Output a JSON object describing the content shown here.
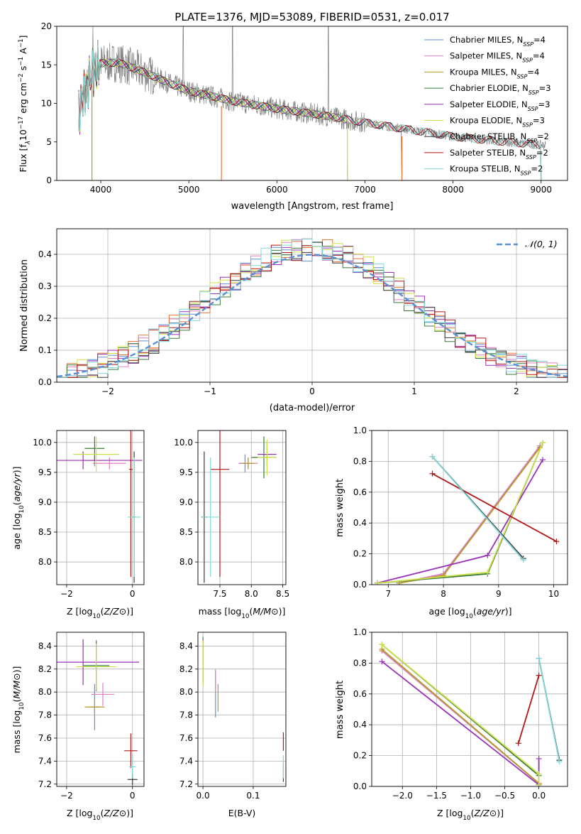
{
  "figure_title": "PLATE=1376, MJD=53089, FIBERID=0531, z=0.017",
  "series": [
    {
      "base": "Chabrier MILES, N",
      "sub": "SSP",
      "tail": "=4",
      "color": "#5b8fd6"
    },
    {
      "base": "Salpeter MILES, N",
      "sub": "SSP",
      "tail": "=4",
      "color": "#e07fc0"
    },
    {
      "base": "Kroupa MILES, N",
      "sub": "SSP",
      "tail": "=4",
      "color": "#b59a2a"
    },
    {
      "base": "Chabrier ELODIE, N",
      "sub": "SSP",
      "tail": "=3",
      "color": "#3a7a3a"
    },
    {
      "base": "Salpeter ELODIE, N",
      "sub": "SSP",
      "tail": "=3",
      "color": "#9932b8"
    },
    {
      "base": "Kroupa ELODIE, N",
      "sub": "SSP",
      "tail": "=3",
      "color": "#cde04a"
    },
    {
      "base": "Chabrier STELIB, N",
      "sub": "SSP",
      "tail": "=2",
      "color": "#3a3a3a"
    },
    {
      "base": "Salpeter STELIB, N",
      "sub": "SSP",
      "tail": "=2",
      "color": "#b01818"
    },
    {
      "base": "Kroupa STELIB, N",
      "sub": "SSP",
      "tail": "=2",
      "color": "#80d8d8"
    }
  ],
  "chart_data": [
    {
      "id": "spectrum",
      "type": "line",
      "xlabel": "wavelength [Angstrom, rest frame]",
      "ylabel_main": "Flux [f",
      "ylabel_sub": "λ",
      "ylabel_mid": "10",
      "ylabel_sup1": "−17",
      "ylabel_unit": " erg cm",
      "ylabel_sup2": "−2",
      "ylabel_s": " s",
      "ylabel_sup3": "−1",
      "ylabel_end": " A",
      "ylabel_sup4": "−1",
      "ylabel_close": "]",
      "xlim": [
        3500,
        9300
      ],
      "ylim": [
        0,
        20
      ],
      "xticks": [
        4000,
        5000,
        6000,
        7000,
        8000,
        9000
      ],
      "yticks": [
        0,
        5,
        10,
        15,
        20
      ],
      "data_color": "#808080",
      "continuum_x": [
        3750,
        3900,
        4000,
        4200,
        4500,
        4800,
        5000,
        5500,
        6000,
        6500,
        7000,
        7500,
        8000,
        8500,
        9000
      ],
      "continuum_y": [
        9,
        14,
        15.2,
        15.3,
        14,
        12.5,
        11.6,
        10.3,
        9.3,
        8.5,
        7.5,
        6.6,
        5.7,
        5.1,
        4.6
      ],
      "model_drops": [
        3900,
        5370,
        6800,
        7420
      ]
    },
    {
      "id": "residuals",
      "type": "step",
      "xlabel": "(data-model)/error",
      "ylabel": "Normed distribution",
      "xlim": [
        -2.5,
        2.5
      ],
      "ylim": [
        0,
        0.48
      ],
      "xticks": [
        -2,
        -1,
        0,
        1,
        2
      ],
      "yticks": [
        0.0,
        0.1,
        0.2,
        0.3,
        0.4
      ],
      "bin_width": 0.1,
      "gaussian_label": "𝒩(0, 1)",
      "gaussian_color": "#5b8fd6",
      "histogram_base": [
        0.03,
        0.04,
        0.05,
        0.06,
        0.07,
        0.09,
        0.1,
        0.12,
        0.13,
        0.15,
        0.16,
        0.18,
        0.2,
        0.22,
        0.21,
        0.23,
        0.24,
        0.26,
        0.28,
        0.3,
        0.31,
        0.33,
        0.35,
        0.36,
        0.38,
        0.39,
        0.4,
        0.41,
        0.4,
        0.42,
        0.41,
        0.4,
        0.41,
        0.39,
        0.4,
        0.38,
        0.37,
        0.35,
        0.33,
        0.31,
        0.29,
        0.27,
        0.25,
        0.22,
        0.19,
        0.17,
        0.15,
        0.13,
        0.11,
        0.09,
        0.08,
        0.07,
        0.06,
        0.06,
        0.05,
        0.04,
        0.04,
        0.03,
        0.03,
        0.03,
        0.02,
        0.03,
        0.02,
        0.03,
        0.02,
        0.03,
        0.02,
        0.02,
        0.03,
        0.02,
        0.03,
        0.02,
        0.03,
        0.02,
        0.03,
        0.02,
        0.03,
        0.02,
        0.03,
        0.02
      ]
    },
    {
      "id": "age_vs_Z",
      "type": "errorbar",
      "xlabel_pre": "Z [log",
      "xlabel_sub": "10",
      "xlabel_post": "(Z/Z",
      "xlabel_end": "⊙)]",
      "ylabel_pre": "age  [log",
      "ylabel_sub": "10",
      "ylabel_post": "(age/yr)]",
      "xlim": [
        -2.3,
        0.35
      ],
      "ylim": [
        7.62,
        10.2
      ],
      "xticks": [
        -2,
        0
      ],
      "yticks": [
        8.0,
        8.5,
        9.0,
        9.5,
        10.0
      ],
      "points": [
        {
          "s": 0,
          "x": -1.15,
          "y": 9.7,
          "xerr": 0.4,
          "yerr": 0.1
        },
        {
          "s": 1,
          "x": -0.7,
          "y": 9.65,
          "xerr": 0.5,
          "yerr": 0.1
        },
        {
          "s": 2,
          "x": -1.15,
          "y": 9.7,
          "xerr": 0.3,
          "yerr": 0.08
        },
        {
          "s": 3,
          "x": -1.15,
          "y": 9.9,
          "xerr": 0.3,
          "yerr": 0.2
        },
        {
          "s": 4,
          "x": -1.5,
          "y": 9.7,
          "xerr": 1.8,
          "yerr": 0.15
        },
        {
          "s": 5,
          "x": -1.1,
          "y": 9.8,
          "xerr": 0.7,
          "yerr": 0.3
        },
        {
          "s": 6,
          "x": 0.05,
          "y": 8.75,
          "xerr": 0.05,
          "yerr": 1.1
        },
        {
          "s": 7,
          "x": -0.05,
          "y": 9.55,
          "xerr": 0.05,
          "yerr": 1.8
        },
        {
          "s": 8,
          "x": 0.05,
          "y": 8.75,
          "xerr": 0.2,
          "yerr": 1.0
        }
      ]
    },
    {
      "id": "age_vs_mass",
      "type": "errorbar",
      "xlabel_pre": "mass [log",
      "xlabel_sub": "10",
      "xlabel_post": "(M/M",
      "xlabel_end": "⊙)]",
      "xlim": [
        7.15,
        8.55
      ],
      "ylim": [
        7.62,
        10.2
      ],
      "xticks": [
        7.5,
        8.0,
        8.5
      ],
      "yticks": [
        8.0,
        8.5,
        9.0,
        9.5,
        10.0
      ],
      "points": [
        {
          "s": 0,
          "x": 7.9,
          "y": 9.65,
          "xerr": 0.1,
          "yerr": 0.15
        },
        {
          "s": 1,
          "x": 7.95,
          "y": 9.65,
          "xerr": 0.15,
          "yerr": 0.1
        },
        {
          "s": 2,
          "x": 7.95,
          "y": 9.65,
          "xerr": 0.1,
          "yerr": 0.1
        },
        {
          "s": 3,
          "x": 8.2,
          "y": 9.75,
          "xerr": 0.2,
          "yerr": 0.35
        },
        {
          "s": 4,
          "x": 8.25,
          "y": 9.8,
          "xerr": 0.15,
          "yerr": 0.2
        },
        {
          "s": 5,
          "x": 8.25,
          "y": 9.75,
          "xerr": 0.15,
          "yerr": 0.3
        },
        {
          "s": 6,
          "x": 7.25,
          "y": 8.75,
          "xerr": 0.05,
          "yerr": 1.1
        },
        {
          "s": 7,
          "x": 7.5,
          "y": 9.55,
          "xerr": 0.15,
          "yerr": 1.8
        },
        {
          "s": 8,
          "x": 7.35,
          "y": 8.75,
          "xerr": 0.15,
          "yerr": 1.0
        }
      ]
    },
    {
      "id": "massweight_vs_age",
      "type": "line",
      "xlabel_pre": "age  [log",
      "xlabel_sub": "10",
      "xlabel_post": "(age/yr)]",
      "ylabel": "mass weight",
      "xlim": [
        6.7,
        10.25
      ],
      "ylim": [
        0,
        1.0
      ],
      "xticks": [
        7,
        8,
        9,
        10
      ],
      "yticks": [
        0.0,
        0.2,
        0.4,
        0.6,
        0.8,
        1.0
      ],
      "lines": [
        {
          "s": 0,
          "x": [
            7.2,
            8.0,
            9.75
          ],
          "y": [
            0.01,
            0.07,
            0.9
          ]
        },
        {
          "s": 1,
          "x": [
            7.2,
            8.0,
            9.75
          ],
          "y": [
            0.01,
            0.07,
            0.9
          ]
        },
        {
          "s": 2,
          "x": [
            7.2,
            8.0,
            9.75
          ],
          "y": [
            0.01,
            0.06,
            0.89
          ]
        },
        {
          "s": 3,
          "x": [
            6.8,
            8.8,
            9.8
          ],
          "y": [
            0.01,
            0.07,
            0.92
          ]
        },
        {
          "s": 4,
          "x": [
            6.8,
            8.8,
            9.8
          ],
          "y": [
            0.01,
            0.19,
            0.81
          ]
        },
        {
          "s": 5,
          "x": [
            6.8,
            8.8,
            9.8
          ],
          "y": [
            0.01,
            0.08,
            0.92
          ]
        },
        {
          "s": 6,
          "x": [
            7.8,
            9.45
          ],
          "y": [
            0.83,
            0.17
          ]
        },
        {
          "s": 7,
          "x": [
            7.8,
            10.05
          ],
          "y": [
            0.72,
            0.28
          ]
        },
        {
          "s": 8,
          "x": [
            7.8,
            9.45
          ],
          "y": [
            0.83,
            0.16
          ]
        }
      ]
    },
    {
      "id": "mass_vs_Z",
      "type": "errorbar",
      "xlabel_pre": "Z [log",
      "xlabel_sub": "10",
      "xlabel_post": "(Z/Z",
      "xlabel_end": "⊙)]",
      "ylabel_pre": "mass [log",
      "ylabel_sub": "10",
      "ylabel_post": "(M/M",
      "ylabel_end": "⊙)]",
      "xlim": [
        -2.3,
        0.35
      ],
      "ylim": [
        7.18,
        8.52
      ],
      "xticks": [
        -2,
        0
      ],
      "yticks": [
        7.2,
        7.4,
        7.6,
        7.8,
        8.0,
        8.2,
        8.4
      ],
      "points": [
        {
          "s": 0,
          "x": -1.15,
          "y": 7.87,
          "xerr": 0.15,
          "yerr": 0.2
        },
        {
          "s": 1,
          "x": -0.9,
          "y": 7.98,
          "xerr": 0.35,
          "yerr": 0.1
        },
        {
          "s": 2,
          "x": -1.15,
          "y": 7.87,
          "xerr": 0.3,
          "yerr": 0.07
        },
        {
          "s": 3,
          "x": -1.1,
          "y": 8.23,
          "xerr": 0.4,
          "yerr": 0.22
        },
        {
          "s": 4,
          "x": -1.5,
          "y": 8.26,
          "xerr": 1.7,
          "yerr": 0.2
        },
        {
          "s": 5,
          "x": -1.1,
          "y": 8.22,
          "xerr": 0.6,
          "yerr": 0.2
        },
        {
          "s": 6,
          "x": 0.0,
          "y": 7.24,
          "xerr": 0.15,
          "yerr": 0.05
        },
        {
          "s": 7,
          "x": -0.05,
          "y": 7.49,
          "xerr": 0.2,
          "yerr": 0.15
        },
        {
          "s": 8,
          "x": 0.0,
          "y": 7.35,
          "xerr": 0.1,
          "yerr": 0.1
        }
      ]
    },
    {
      "id": "mass_vs_EBV",
      "type": "errorbar",
      "xlabel": "E(B-V)",
      "xlim": [
        -0.01,
        0.165
      ],
      "ylim": [
        7.18,
        8.52
      ],
      "xticks": [
        0.0,
        0.1
      ],
      "yticks": [
        7.2,
        7.4,
        7.6,
        7.8,
        8.0,
        8.2,
        8.4
      ],
      "points": [
        {
          "s": 0,
          "x": 0.025,
          "y": 7.98,
          "xerr": 0.0,
          "yerr": 0.2
        },
        {
          "s": 1,
          "x": 0.025,
          "y": 8.1,
          "xerr": 0.0,
          "yerr": 0.1
        },
        {
          "s": 2,
          "x": 0.03,
          "y": 7.95,
          "xerr": 0.0,
          "yerr": 0.12
        },
        {
          "s": 3,
          "x": 0.0,
          "y": 8.28,
          "xerr": 0.0,
          "yerr": 0.2
        },
        {
          "s": 4,
          "x": 0.0,
          "y": 8.26,
          "xerr": 0.0,
          "yerr": 0.2
        },
        {
          "s": 5,
          "x": 0.0,
          "y": 8.25,
          "xerr": 0.0,
          "yerr": 0.2
        },
        {
          "s": 6,
          "x": 0.16,
          "y": 7.3,
          "xerr": 0.0,
          "yerr": 0.08
        },
        {
          "s": 7,
          "x": 0.16,
          "y": 7.57,
          "xerr": 0.0,
          "yerr": 0.08
        },
        {
          "s": 8,
          "x": 0.16,
          "y": 7.35,
          "xerr": 0.0,
          "yerr": 0.1
        }
      ]
    },
    {
      "id": "massweight_vs_Z",
      "type": "line",
      "xlabel_pre": "Z [log",
      "xlabel_sub": "10",
      "xlabel_post": "(Z/Z",
      "xlabel_end": "⊙)]",
      "ylabel": "mass weight",
      "xlim": [
        -2.45,
        0.42
      ],
      "ylim": [
        0,
        1.0
      ],
      "xticks": [
        -2.0,
        -1.5,
        -1.0,
        -0.5,
        0.0
      ],
      "yticks": [
        0.0,
        0.2,
        0.4,
        0.6,
        0.8,
        1.0
      ],
      "lines": [
        {
          "s": 0,
          "x": [
            -2.3,
            0.0,
            0.0
          ],
          "y": [
            0.88,
            0.02,
            0.01
          ]
        },
        {
          "s": 1,
          "x": [
            -2.3,
            0.0,
            0.0
          ],
          "y": [
            0.88,
            0.02,
            0.01
          ]
        },
        {
          "s": 2,
          "x": [
            -2.3,
            0.0,
            0.0
          ],
          "y": [
            0.89,
            0.02,
            0.01
          ]
        },
        {
          "s": 3,
          "x": [
            -2.3,
            0.0,
            0.0
          ],
          "y": [
            0.92,
            0.07,
            0.01
          ]
        },
        {
          "s": 4,
          "x": [
            -2.3,
            0.0,
            0.0
          ],
          "y": [
            0.81,
            0.01,
            0.18
          ]
        },
        {
          "s": 5,
          "x": [
            -2.3,
            0.0,
            0.0
          ],
          "y": [
            0.92,
            0.08,
            0.01
          ]
        },
        {
          "s": 6,
          "x": [
            0.0,
            0.3
          ],
          "y": [
            0.83,
            0.17
          ]
        },
        {
          "s": 7,
          "x": [
            -0.3,
            0.0
          ],
          "y": [
            0.28,
            0.72
          ]
        },
        {
          "s": 8,
          "x": [
            0.0,
            0.3
          ],
          "y": [
            0.83,
            0.16
          ]
        }
      ]
    }
  ]
}
